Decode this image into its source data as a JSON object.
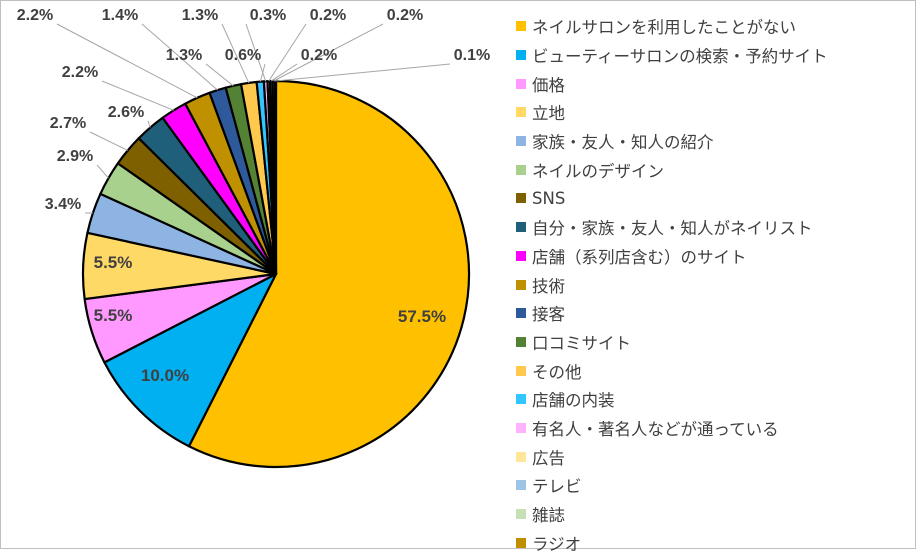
{
  "chart_data": {
    "type": "pie",
    "title": "",
    "legend_position": "right",
    "slices": [
      {
        "name": "ネイルサロンを利用したことがない",
        "value": 57.5,
        "label": "57.5%",
        "color": "#ffc000"
      },
      {
        "name": "ビューティーサロンの検索・予約サイト",
        "value": 10.0,
        "label": "10.0%",
        "color": "#00b0f0"
      },
      {
        "name": "価格",
        "value": 5.5,
        "label": "5.5%",
        "color": "#ff99ff"
      },
      {
        "name": "立地",
        "value": 5.5,
        "label": "5.5%",
        "color": "#ffd966"
      },
      {
        "name": "家族・友人・知人の紹介",
        "value": 3.4,
        "label": "3.4%",
        "color": "#8eb4e3"
      },
      {
        "name": "ネイルのデザイン",
        "value": 2.9,
        "label": "2.9%",
        "color": "#a9d18e"
      },
      {
        "name": "SNS",
        "value": 2.7,
        "label": "2.7%",
        "color": "#7f6000"
      },
      {
        "name": "自分・家族・友人・知人がネイリスト",
        "value": 2.6,
        "label": "2.6%",
        "color": "#1f5f7a"
      },
      {
        "name": "店舗（系列店含む）のサイト",
        "value": 2.2,
        "label": "2.2%",
        "color": "#ff00ff"
      },
      {
        "name": "技術",
        "value": 2.2,
        "label": "2.2%",
        "color": "#bf9000"
      },
      {
        "name": "接客",
        "value": 1.4,
        "label": "1.4%",
        "color": "#2e5a9c"
      },
      {
        "name": "口コミサイト",
        "value": 1.3,
        "label": "1.3%",
        "color": "#548235"
      },
      {
        "name": "その他",
        "value": 1.3,
        "label": "1.3%",
        "color": "#ffc94d"
      },
      {
        "name": "店舗の内装",
        "value": 0.6,
        "label": "0.6%",
        "color": "#33c5ff"
      },
      {
        "name": "有名人・著名人などが通っている",
        "value": 0.3,
        "label": "0.3%",
        "color": "#ffb3ff"
      },
      {
        "name": "広告",
        "value": 0.2,
        "label": "0.2%",
        "color": "#ffe699"
      },
      {
        "name": "テレビ",
        "value": 0.2,
        "label": "0.2%",
        "color": "#9dc3e6"
      },
      {
        "name": "雑誌",
        "value": 0.2,
        "label": "0.2%",
        "color": "#c5e0b4"
      },
      {
        "name": "ラジオ",
        "value": 0.1,
        "label": "0.1%",
        "color": "#bf8f00"
      }
    ]
  }
}
